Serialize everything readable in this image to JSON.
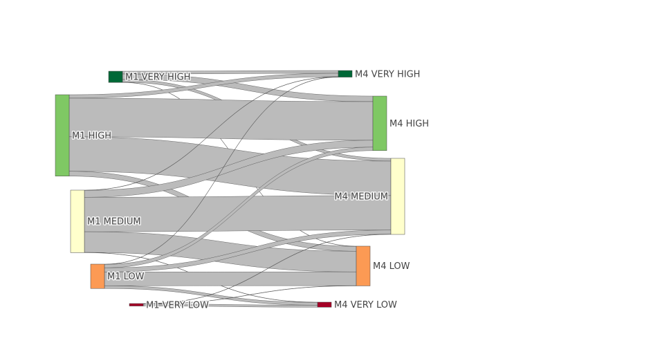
{
  "chart_data": {
    "type": "sankey",
    "title": "",
    "nodes": [
      {
        "id": "m1_very_high",
        "label": "M1 VERY HIGH",
        "color": "#006837"
      },
      {
        "id": "m1_high",
        "label": "M1 HIGH",
        "color": "#7fc864"
      },
      {
        "id": "m1_medium",
        "label": "M1 MEDIUM",
        "color": "#ffffcc"
      },
      {
        "id": "m1_low",
        "label": "M1 LOW",
        "color": "#fc9a54"
      },
      {
        "id": "m1_very_low",
        "label": "M1 VERY LOW",
        "color": "#a50026"
      },
      {
        "id": "m4_very_high",
        "label": "M4 VERY HIGH",
        "color": "#006837"
      },
      {
        "id": "m4_high",
        "label": "M4 HIGH",
        "color": "#7fc864"
      },
      {
        "id": "m4_medium",
        "label": "M4 MEDIUM",
        "color": "#ffffcc"
      },
      {
        "id": "m4_low",
        "label": "M4 LOW",
        "color": "#fc9a54"
      },
      {
        "id": "m4_very_low",
        "label": "M4 VERY LOW",
        "color": "#a50026"
      }
    ],
    "links": [
      {
        "source": "m1_very_high",
        "target": "m4_very_high",
        "value": 4
      },
      {
        "source": "m1_very_high",
        "target": "m4_high",
        "value": 8
      },
      {
        "source": "m1_very_high",
        "target": "m4_medium",
        "value": 4
      },
      {
        "source": "m1_very_high",
        "target": "m4_low",
        "value": 0.3
      },
      {
        "source": "m1_high",
        "target": "m4_very_high",
        "value": 5
      },
      {
        "source": "m1_high",
        "target": "m4_high",
        "value": 56
      },
      {
        "source": "m1_high",
        "target": "m4_medium",
        "value": 50
      },
      {
        "source": "m1_high",
        "target": "m4_low",
        "value": 7
      },
      {
        "source": "m1_medium",
        "target": "m4_very_high",
        "value": 0.3
      },
      {
        "source": "m1_medium",
        "target": "m4_high",
        "value": 10
      },
      {
        "source": "m1_medium",
        "target": "m4_medium",
        "value": 50
      },
      {
        "source": "m1_medium",
        "target": "m4_low",
        "value": 30
      },
      {
        "source": "m1_medium",
        "target": "m4_very_low",
        "value": 0.3
      },
      {
        "source": "m1_low",
        "target": "m4_very_high",
        "value": 0.3
      },
      {
        "source": "m1_low",
        "target": "m4_high",
        "value": 5
      },
      {
        "source": "m1_low",
        "target": "m4_medium",
        "value": 6
      },
      {
        "source": "m1_low",
        "target": "m4_low",
        "value": 20
      },
      {
        "source": "m1_low",
        "target": "m4_very_low",
        "value": 4
      },
      {
        "source": "m1_very_low",
        "target": "m4_medium",
        "value": 0.3
      },
      {
        "source": "m1_very_low",
        "target": "m4_low",
        "value": 0.3
      },
      {
        "source": "m1_very_low",
        "target": "m4_very_low",
        "value": 3
      }
    ]
  }
}
